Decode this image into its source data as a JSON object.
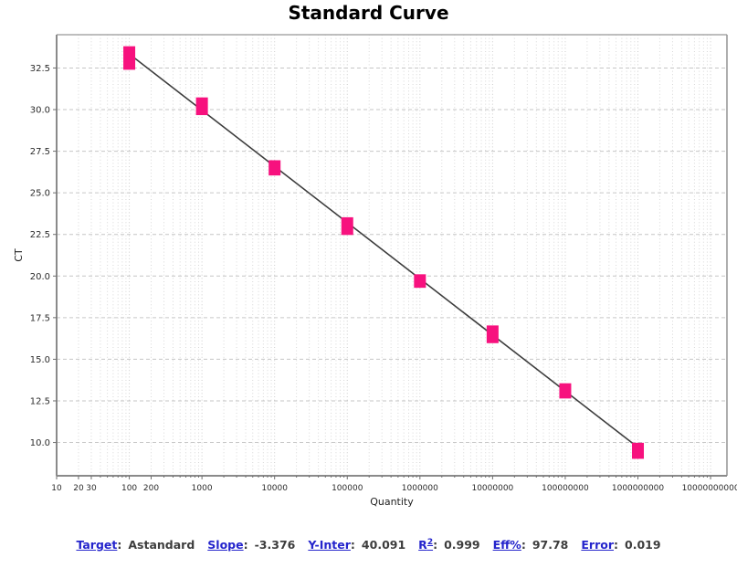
{
  "chart_data": {
    "type": "scatter",
    "title": "Standard Curve",
    "xlabel": "Quantity",
    "ylabel": "CT",
    "x_scale": "log",
    "xlim": [
      10,
      16800000000
    ],
    "ylim": [
      8.0,
      34.5
    ],
    "x_ticks": [
      10,
      20,
      30,
      100,
      200,
      1000,
      10000,
      100000,
      1000000,
      10000000,
      100000000,
      1000000000,
      10000000000
    ],
    "y_ticks": [
      10.0,
      12.5,
      15.0,
      17.5,
      20.0,
      22.5,
      25.0,
      27.5,
      30.0,
      32.5
    ],
    "grid": {
      "horizontal": "dashed",
      "vertical": "dotted",
      "on": true
    },
    "legend_position": "none",
    "series": [
      {
        "name": "Astandard",
        "marker": "square",
        "marker_color": "#f7117e",
        "points": [
          {
            "quantity": 100,
            "ct": 33.1,
            "ct_spread": 0.7
          },
          {
            "quantity": 1000,
            "ct": 30.2,
            "ct_spread": 0.35
          },
          {
            "quantity": 10000,
            "ct": 26.5,
            "ct_spread": 0.2
          },
          {
            "quantity": 100000,
            "ct": 23.0,
            "ct_spread": 0.35
          },
          {
            "quantity": 1000000,
            "ct": 19.7,
            "ct_spread": 0.1
          },
          {
            "quantity": 10000000,
            "ct": 16.5,
            "ct_spread": 0.35
          },
          {
            "quantity": 100000000,
            "ct": 13.1,
            "ct_spread": 0.2
          },
          {
            "quantity": 1000000000,
            "ct": 9.5,
            "ct_spread": 0.25
          }
        ]
      }
    ],
    "regression": {
      "slope": -3.376,
      "y_intercept": 40.091,
      "x_start": 100,
      "x_end": 1000000000,
      "line_color": "#3d3d3d"
    }
  },
  "stats_bar": {
    "label_color": "#2424cc",
    "value_color": "#3d3d3d",
    "items": [
      {
        "label": "Target",
        "sup": "",
        "value": "Astandard"
      },
      {
        "label": "Slope",
        "sup": "",
        "value": "-3.376"
      },
      {
        "label": "Y-Inter",
        "sup": "",
        "value": "40.091"
      },
      {
        "label": "R",
        "sup": "2",
        "value": "0.999"
      },
      {
        "label": "Eff%",
        "sup": "",
        "value": "97.78"
      },
      {
        "label": "Error",
        "sup": "",
        "value": "0.019"
      }
    ]
  },
  "colors": {
    "plot_border": "#949494",
    "grid_horizontal": "#c6c6c6",
    "grid_vertical_minor": "#d8d8d8",
    "grid_vertical_major": "#cccccc",
    "tick": "#6f6f6f",
    "tick_label": "#2b2b2b",
    "axis_label": "#1f1f1f"
  }
}
